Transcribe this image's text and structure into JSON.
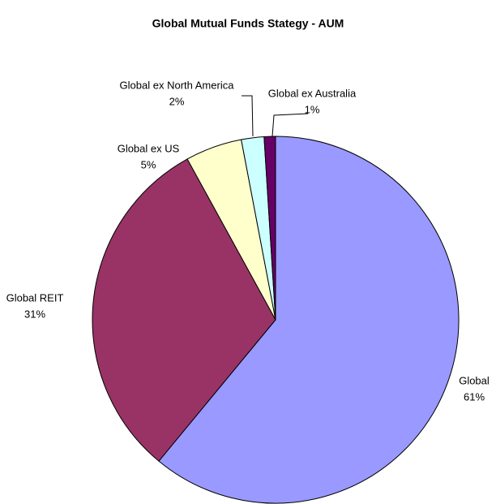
{
  "chart_data": {
    "type": "pie",
    "title": "Global Mutual Funds Stategy - AUM",
    "categories": [
      "Global",
      "Global REIT",
      "Global ex US",
      "Global ex North America",
      "Global ex Australia"
    ],
    "values": [
      61,
      31,
      5,
      2,
      1
    ],
    "value_labels": [
      "61%",
      "31%",
      "5%",
      "2%",
      "1%"
    ],
    "colors": [
      "#9999ff",
      "#993366",
      "#ffffcc",
      "#ccffff",
      "#660066"
    ]
  }
}
